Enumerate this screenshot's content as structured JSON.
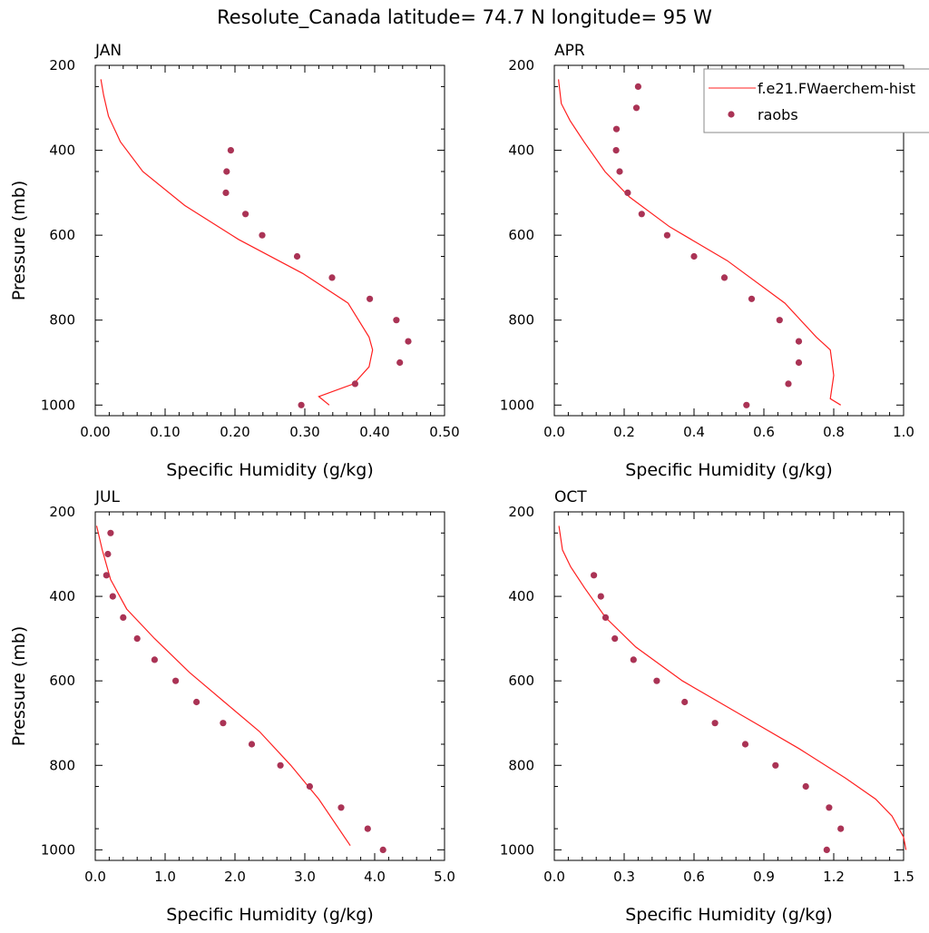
{
  "title": "Resolute_Canada  latitude= 74.7 N longitude= 95 W",
  "legend": {
    "model_label": "f.e21.FWaerchem-hist",
    "obs_label": "raobs"
  },
  "colors": {
    "model": "#ff2020",
    "obs": "#aa3355",
    "axis": "#000000"
  },
  "chart_data": [
    {
      "type": "line",
      "month": "JAN",
      "xlabel": "Specific Humidity (g/kg)",
      "ylabel": "Pressure (mb)",
      "xlim": [
        0,
        0.5
      ],
      "ylim": [
        200,
        1025
      ],
      "y_reversed": true,
      "xticks": [
        "0.00",
        "0.10",
        "0.20",
        "0.30",
        "0.40",
        "0.50"
      ],
      "yticks": [
        "200",
        "400",
        "600",
        "800",
        "1000"
      ],
      "model": [
        [
          0.008,
          233
        ],
        [
          0.012,
          270
        ],
        [
          0.019,
          320
        ],
        [
          0.036,
          380
        ],
        [
          0.068,
          450
        ],
        [
          0.128,
          530
        ],
        [
          0.205,
          610
        ],
        [
          0.297,
          690
        ],
        [
          0.362,
          760
        ],
        [
          0.392,
          840
        ],
        [
          0.397,
          870
        ],
        [
          0.392,
          910
        ],
        [
          0.37,
          950
        ],
        [
          0.32,
          980
        ],
        [
          0.335,
          1000
        ]
      ],
      "obs": [
        [
          0.194,
          400
        ],
        [
          0.188,
          450
        ],
        [
          0.187,
          500
        ],
        [
          0.215,
          550
        ],
        [
          0.239,
          600
        ],
        [
          0.289,
          650
        ],
        [
          0.339,
          700
        ],
        [
          0.393,
          750
        ],
        [
          0.431,
          800
        ],
        [
          0.448,
          850
        ],
        [
          0.436,
          900
        ],
        [
          0.372,
          950
        ],
        [
          0.295,
          1000
        ]
      ]
    },
    {
      "type": "line",
      "month": "APR",
      "xlabel": "Specific Humidity (g/kg)",
      "ylabel": "",
      "xlim": [
        0,
        1.0
      ],
      "ylim": [
        200,
        1025
      ],
      "y_reversed": true,
      "xticks": [
        "0.0",
        "0.2",
        "0.4",
        "0.6",
        "0.8",
        "1.0"
      ],
      "yticks": [
        "200",
        "400",
        "600",
        "800",
        "1000"
      ],
      "model": [
        [
          0.012,
          233
        ],
        [
          0.02,
          290
        ],
        [
          0.045,
          330
        ],
        [
          0.085,
          380
        ],
        [
          0.145,
          450
        ],
        [
          0.215,
          510
        ],
        [
          0.33,
          580
        ],
        [
          0.495,
          660
        ],
        [
          0.66,
          760
        ],
        [
          0.75,
          840
        ],
        [
          0.79,
          870
        ],
        [
          0.8,
          930
        ],
        [
          0.79,
          985
        ],
        [
          0.82,
          1000
        ]
      ],
      "obs": [
        [
          0.24,
          250
        ],
        [
          0.235,
          300
        ],
        [
          0.178,
          350
        ],
        [
          0.177,
          400
        ],
        [
          0.187,
          450
        ],
        [
          0.21,
          500
        ],
        [
          0.25,
          550
        ],
        [
          0.323,
          600
        ],
        [
          0.4,
          650
        ],
        [
          0.487,
          700
        ],
        [
          0.565,
          750
        ],
        [
          0.645,
          800
        ],
        [
          0.7,
          850
        ],
        [
          0.7,
          900
        ],
        [
          0.67,
          950
        ],
        [
          0.55,
          1000
        ]
      ]
    },
    {
      "type": "line",
      "month": "JUL",
      "xlabel": "Specific Humidity (g/kg)",
      "ylabel": "Pressure (mb)",
      "xlim": [
        0,
        5.0
      ],
      "ylim": [
        200,
        1025
      ],
      "y_reversed": true,
      "xticks": [
        "0.0",
        "1.0",
        "2.0",
        "3.0",
        "4.0",
        "5.0"
      ],
      "yticks": [
        "200",
        "400",
        "600",
        "800",
        "1000"
      ],
      "model": [
        [
          0.02,
          233
        ],
        [
          0.1,
          290
        ],
        [
          0.22,
          360
        ],
        [
          0.45,
          430
        ],
        [
          0.85,
          500
        ],
        [
          1.35,
          580
        ],
        [
          1.85,
          650
        ],
        [
          2.35,
          720
        ],
        [
          2.8,
          800
        ],
        [
          3.2,
          880
        ],
        [
          3.65,
          990
        ]
      ],
      "obs": [
        [
          0.22,
          250
        ],
        [
          0.18,
          300
        ],
        [
          0.16,
          350
        ],
        [
          0.25,
          400
        ],
        [
          0.4,
          450
        ],
        [
          0.6,
          500
        ],
        [
          0.85,
          550
        ],
        [
          1.15,
          600
        ],
        [
          1.45,
          650
        ],
        [
          1.83,
          700
        ],
        [
          2.24,
          750
        ],
        [
          2.65,
          800
        ],
        [
          3.07,
          850
        ],
        [
          3.52,
          900
        ],
        [
          3.9,
          950
        ],
        [
          4.12,
          1000
        ]
      ]
    },
    {
      "type": "line",
      "month": "OCT",
      "xlabel": "Specific Humidity (g/kg)",
      "ylabel": "",
      "xlim": [
        0,
        1.5
      ],
      "ylim": [
        200,
        1025
      ],
      "y_reversed": true,
      "xticks": [
        "0.0",
        "0.3",
        "0.6",
        "0.9",
        "1.2",
        "1.5"
      ],
      "yticks": [
        "200",
        "400",
        "600",
        "800",
        "1000"
      ],
      "model": [
        [
          0.02,
          233
        ],
        [
          0.035,
          290
        ],
        [
          0.07,
          330
        ],
        [
          0.13,
          380
        ],
        [
          0.22,
          450
        ],
        [
          0.35,
          520
        ],
        [
          0.55,
          600
        ],
        [
          0.8,
          680
        ],
        [
          1.05,
          760
        ],
        [
          1.25,
          830
        ],
        [
          1.38,
          880
        ],
        [
          1.45,
          920
        ],
        [
          1.5,
          970
        ],
        [
          1.51,
          1000
        ]
      ],
      "obs": [
        [
          0.17,
          350
        ],
        [
          0.2,
          400
        ],
        [
          0.22,
          450
        ],
        [
          0.26,
          500
        ],
        [
          0.34,
          550
        ],
        [
          0.44,
          600
        ],
        [
          0.56,
          650
        ],
        [
          0.69,
          700
        ],
        [
          0.82,
          750
        ],
        [
          0.95,
          800
        ],
        [
          1.08,
          850
        ],
        [
          1.18,
          900
        ],
        [
          1.23,
          950
        ],
        [
          1.17,
          1000
        ]
      ]
    }
  ]
}
